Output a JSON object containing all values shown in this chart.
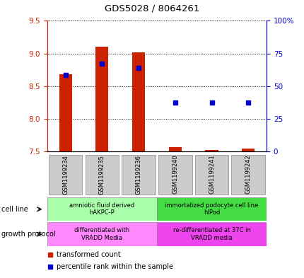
{
  "title": "GDS5028 / 8064261",
  "samples": [
    "GSM1199234",
    "GSM1199235",
    "GSM1199236",
    "GSM1199240",
    "GSM1199241",
    "GSM1199242"
  ],
  "bar_bottoms": [
    7.5,
    7.5,
    7.5,
    7.5,
    7.5,
    7.5
  ],
  "bar_tops": [
    8.68,
    9.1,
    9.02,
    7.57,
    7.52,
    7.54
  ],
  "blue_y": [
    8.67,
    8.85,
    8.78,
    8.25,
    8.25,
    8.25
  ],
  "ylim": [
    7.5,
    9.5
  ],
  "yticks_left": [
    7.5,
    8.0,
    8.5,
    9.0,
    9.5
  ],
  "yticks_right": [
    0,
    25,
    50,
    75,
    100
  ],
  "bar_color": "#cc2200",
  "blue_color": "#0000cc",
  "cell_line_groups": [
    {
      "label": "amniotic fluid derived\nhAKPC-P",
      "start": 0,
      "end": 3,
      "color": "#aaffaa"
    },
    {
      "label": "immortalized podocyte cell line\nhIPod",
      "start": 3,
      "end": 6,
      "color": "#44dd44"
    }
  ],
  "growth_protocol_groups": [
    {
      "label": "differentiated with\nVRADD Media",
      "start": 0,
      "end": 3,
      "color": "#ff88ff"
    },
    {
      "label": "re-differentiated at 37C in\nVRADD media",
      "start": 3,
      "end": 6,
      "color": "#ee44ee"
    }
  ],
  "cell_line_label": "cell line",
  "growth_protocol_label": "growth protocol",
  "legend_items": [
    {
      "label": "transformed count",
      "color": "#cc2200"
    },
    {
      "label": "percentile rank within the sample",
      "color": "#0000cc"
    }
  ],
  "bar_width": 0.35,
  "title_fontsize": 9.5,
  "tick_fontsize": 7.5,
  "sample_fontsize": 6,
  "label_fontsize": 7,
  "group_fontsize": 6,
  "legend_fontsize": 7
}
